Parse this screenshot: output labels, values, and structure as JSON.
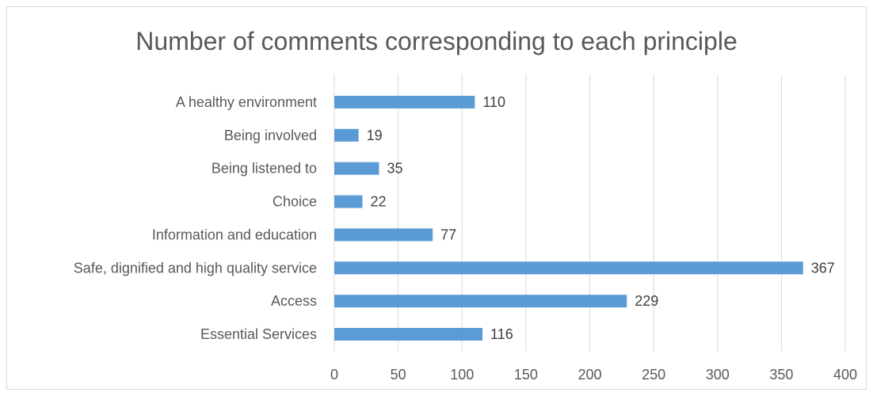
{
  "chart_data": {
    "type": "bar",
    "orientation": "horizontal",
    "title": "Number of comments corresponding to each principle",
    "categories": [
      "A healthy environment",
      "Being involved",
      "Being listened to",
      "Choice",
      "Information and education",
      "Safe, dignified and high quality service",
      "Access",
      "Essential Services"
    ],
    "values": [
      110,
      19,
      35,
      22,
      77,
      367,
      229,
      116
    ],
    "xlim": [
      0,
      400
    ],
    "xticks": [
      "0",
      "50",
      "100",
      "150",
      "200",
      "250",
      "300",
      "350",
      "400"
    ],
    "xlabel": "",
    "ylabel": "",
    "grid": true,
    "legend": "none",
    "bar_color": "#5b9bd5"
  }
}
